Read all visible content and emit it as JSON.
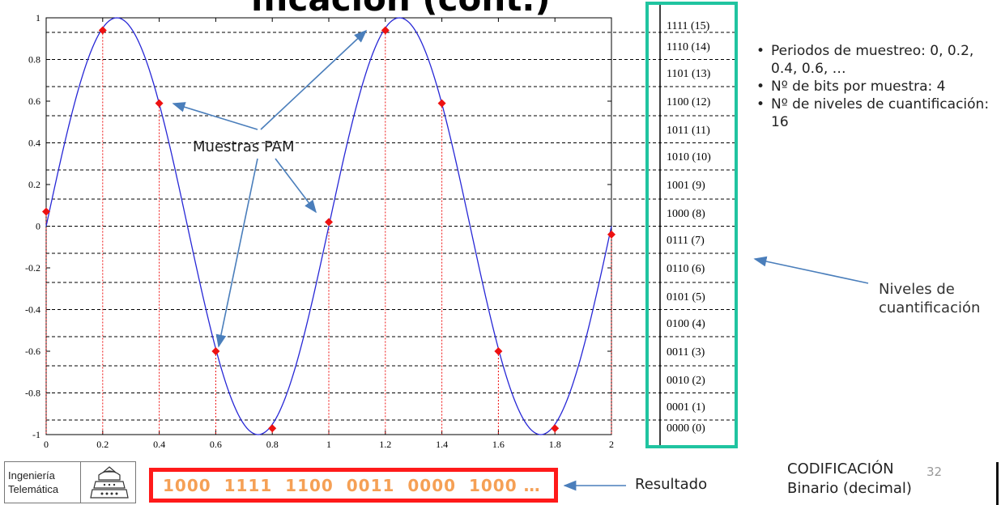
{
  "slide": {
    "title_fragment": "ificación (cont.)",
    "bullets": [
      "Periodos de muestreo: 0, 0.2, 0.4, 0.6, …",
      "Nº de bits por muestra: 4",
      "Nº de niveles de cuantificación: 16"
    ],
    "annotations": {
      "muestras": "Muestras PAM",
      "niveles": [
        "Niveles de",
        "cuantificación"
      ],
      "resultado": "Resultado"
    },
    "result_code": "1000  1111  1100  0011  0000  1000 …",
    "footer_label": [
      "CODIFICACIÓN",
      "Binario (decimal)"
    ],
    "page_number": "32",
    "logo_text": [
      "Ingeniería",
      "Telemática"
    ],
    "colors": {
      "curve": "#2727d6",
      "samples": "#ee1111",
      "level_box": "#20c4a0",
      "result_border": "#ff1a1a",
      "result_text": "#f5a055"
    }
  },
  "chart_data": {
    "type": "line",
    "title": "",
    "xlabel": "",
    "ylabel": "",
    "xlim": [
      0,
      2
    ],
    "ylim": [
      -1,
      1
    ],
    "x_ticks": [
      "0",
      "0.2",
      "0.4",
      "0.6",
      "0.8",
      "1",
      "1.2",
      "1.4",
      "1.6",
      "1.8",
      "2"
    ],
    "y_ticks": [
      "1",
      "0.8",
      "0.6",
      "0.4",
      "0.2",
      "0",
      "-0.2",
      "-0.4",
      "-0.6",
      "-0.8",
      "-1"
    ],
    "curve": {
      "function": "sin(2*pi*x)",
      "frequency": 1
    },
    "samples": {
      "x": [
        0,
        0.2,
        0.4,
        0.6,
        0.8,
        1.0,
        1.2,
        1.4,
        1.6,
        1.8,
        2.0
      ],
      "y": [
        0.07,
        0.94,
        0.59,
        -0.6,
        -0.97,
        0.02,
        0.94,
        0.59,
        -0.6,
        -0.97,
        -0.04
      ]
    },
    "quantization_levels": [
      "1111 (15)",
      "1110 (14)",
      "1101 (13)",
      "1100 (12)",
      "1011 (11)",
      "1010 (10)",
      "1001 (9)",
      "1000 (8)",
      "0111 (7)",
      "0110 (6)",
      "0101 (5)",
      "0100 (4)",
      "0011 (3)",
      "0010 (2)",
      "0001 (1)",
      "0000 (0)"
    ],
    "level_boundaries": [
      0.93,
      0.8,
      0.67,
      0.53,
      0.4,
      0.27,
      0.13,
      0,
      -0.13,
      -0.27,
      -0.4,
      -0.53,
      -0.67,
      -0.8,
      -0.93
    ]
  }
}
